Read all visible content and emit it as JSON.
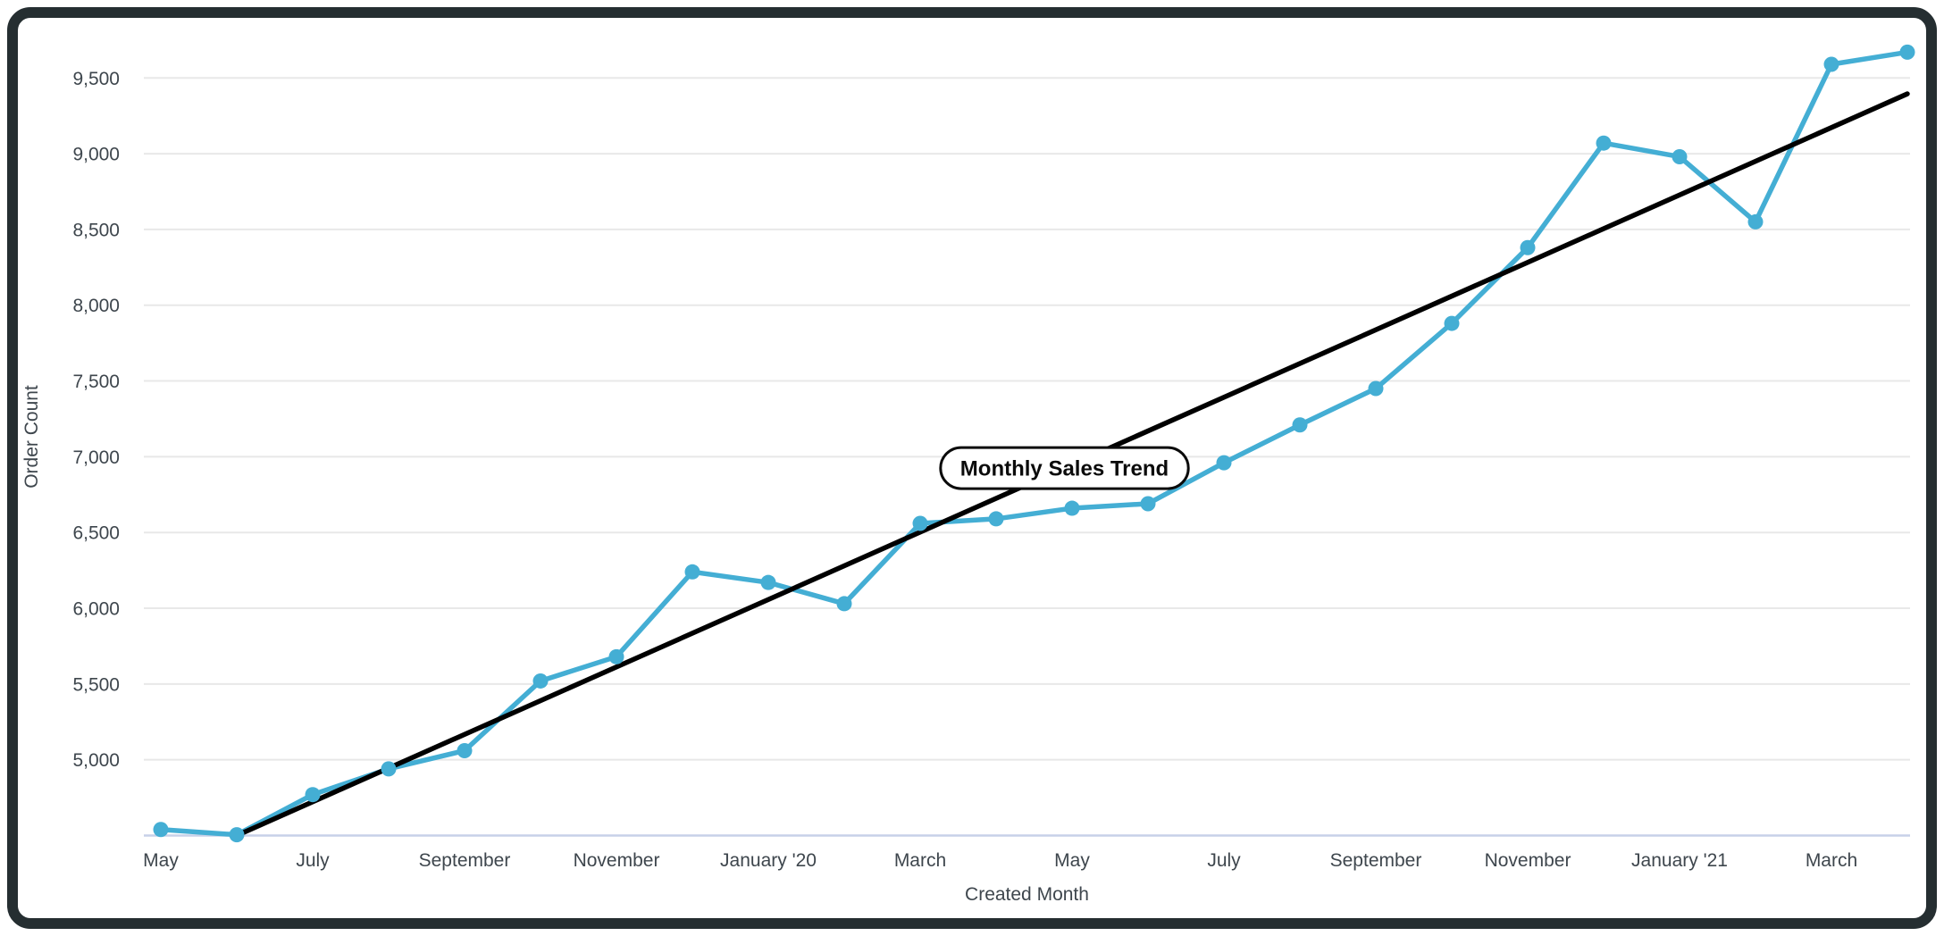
{
  "card": {
    "border_color": "#252E31",
    "background": "#FFFFFF"
  },
  "chart_data": {
    "type": "line",
    "annotation_label": "Monthly Sales Trend",
    "xlabel": "Created Month",
    "ylabel": "Order Count",
    "categories": [
      "May '19",
      "June '19",
      "July '19",
      "August '19",
      "September '19",
      "October '19",
      "November '19",
      "December '19",
      "January '20",
      "February '20",
      "March '20",
      "April '20",
      "May '20",
      "June '20",
      "July '20",
      "August '20",
      "September '20",
      "October '20",
      "November '20",
      "December '20",
      "January '21",
      "February '21",
      "March '21",
      "April '21"
    ],
    "series": [
      {
        "name": "Order Count",
        "kind": "data",
        "color": "#44AED4",
        "values": [
          4540,
          4505,
          4770,
          4940,
          5060,
          5520,
          5680,
          6240,
          6170,
          6030,
          6560,
          6590,
          6660,
          6690,
          6960,
          7210,
          7450,
          7880,
          8380,
          9070,
          8980,
          8550,
          9590,
          9670
        ]
      },
      {
        "name": "Trend",
        "kind": "trend",
        "color": "#000000",
        "segment": {
          "start_index": 1.0,
          "start_value": 4500,
          "end_index": 23.0,
          "end_value": 9395
        }
      }
    ],
    "x_tick_labels": [
      {
        "index": 0,
        "label": "May"
      },
      {
        "index": 2,
        "label": "July"
      },
      {
        "index": 4,
        "label": "September"
      },
      {
        "index": 6,
        "label": "November"
      },
      {
        "index": 8,
        "label": "January '20"
      },
      {
        "index": 10,
        "label": "March"
      },
      {
        "index": 12,
        "label": "May"
      },
      {
        "index": 14,
        "label": "July"
      },
      {
        "index": 16,
        "label": "September"
      },
      {
        "index": 18,
        "label": "November"
      },
      {
        "index": 20,
        "label": "January '21"
      },
      {
        "index": 22,
        "label": "March"
      }
    ],
    "y_ticks": [
      {
        "value": 5000,
        "label": "5,000"
      },
      {
        "value": 5500,
        "label": "5,500"
      },
      {
        "value": 6000,
        "label": "6,000"
      },
      {
        "value": 6500,
        "label": "6,500"
      },
      {
        "value": 7000,
        "label": "7,000"
      },
      {
        "value": 7500,
        "label": "7,500"
      },
      {
        "value": 8000,
        "label": "8,000"
      },
      {
        "value": 8500,
        "label": "8,500"
      },
      {
        "value": 9000,
        "label": "9,000"
      },
      {
        "value": 9500,
        "label": "9,500"
      }
    ],
    "ylim": [
      4500,
      9900
    ],
    "grid": "horizontal",
    "legend": "none",
    "annotation": {
      "text": "Monthly Sales Trend",
      "anchor_index": 11.9,
      "anchor_value": 6925
    },
    "colors": {
      "line": "#44AED4",
      "trend": "#000000",
      "gridline": "#E8E8E8",
      "axis_line": "#C7D1E8",
      "tick_text": "#3E464D",
      "annotation_text": "#0B0B0B",
      "annotation_border": "#0B0B0B",
      "annotation_fill": "#FFFFFF"
    }
  }
}
